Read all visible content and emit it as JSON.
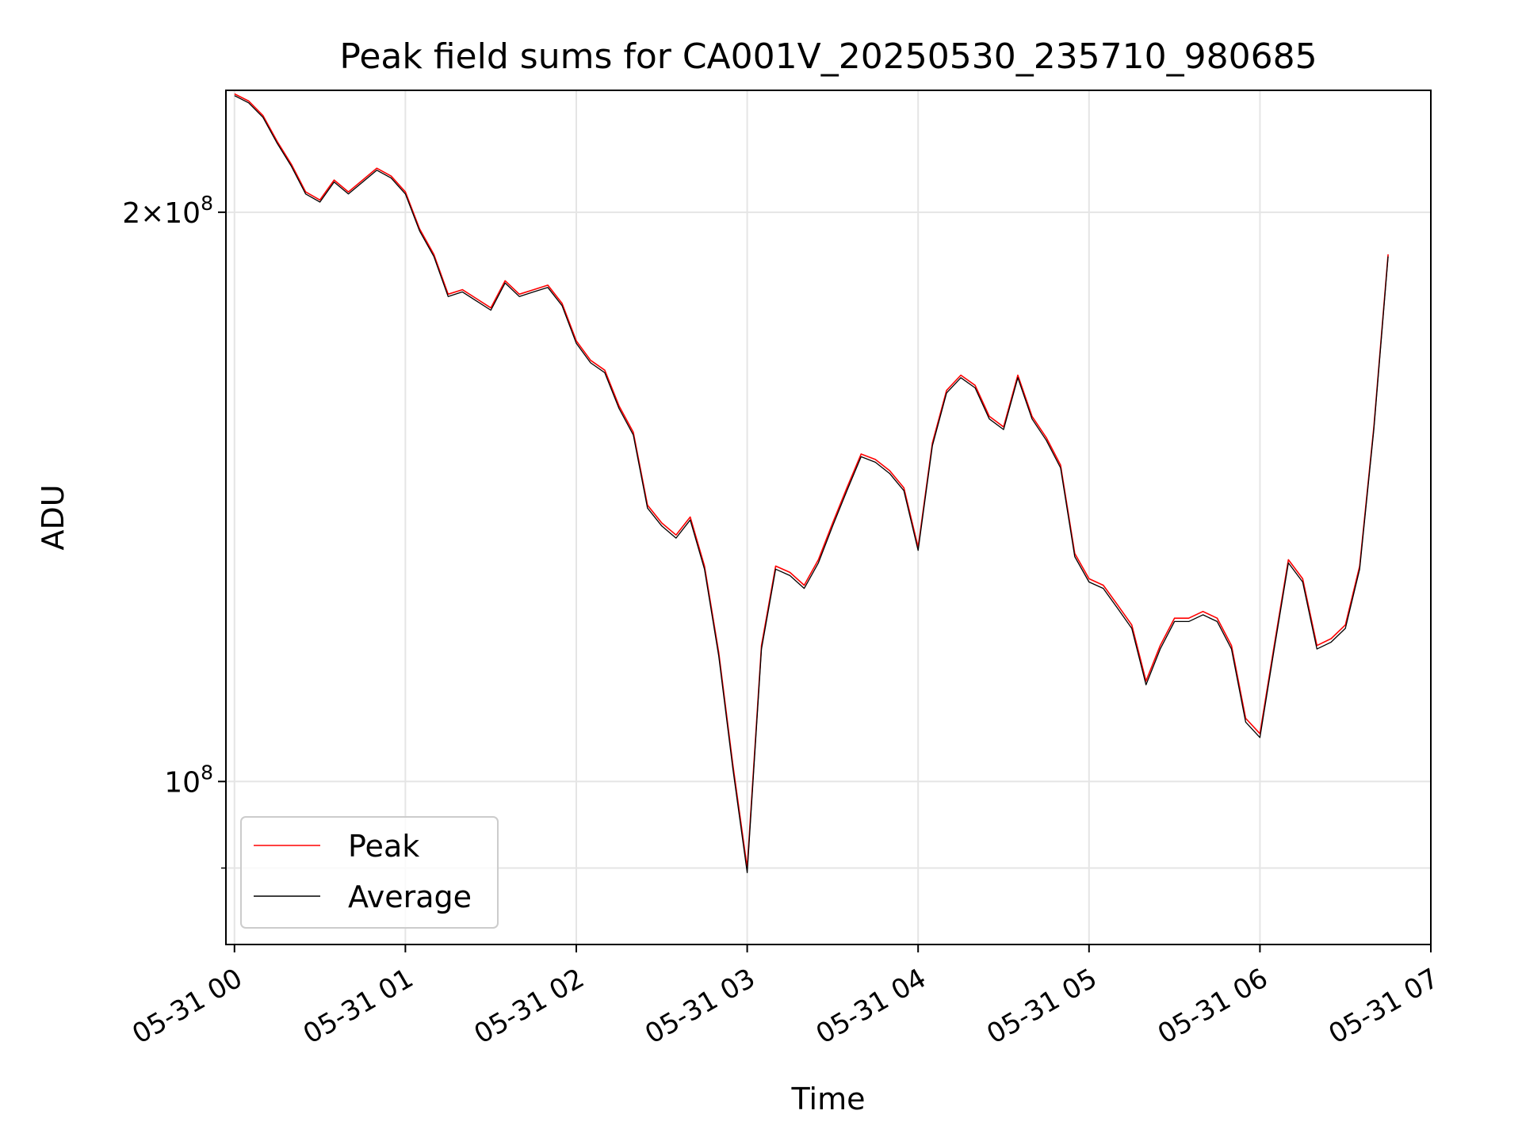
{
  "chart_data": {
    "type": "line",
    "title": "Peak field sums for CA001V_20250530_235710_980685",
    "xlabel": "Time",
    "ylabel": "ADU",
    "x_unit": "datetime",
    "xlim": [
      "2025-05-30 23:57",
      "2025-05-31 07:00"
    ],
    "ylim": [
      82000000,
      232000000
    ],
    "y_scale": "log",
    "grid": true,
    "legend_position": "lower-left",
    "x_ticks": [
      "05-31 00",
      "05-31 01",
      "05-31 02",
      "05-31 03",
      "05-31 04",
      "05-31 05",
      "05-31 06",
      "05-31 07"
    ],
    "y_ticks": [
      {
        "value": 200000000,
        "mantissa": "2",
        "exponent": "8"
      },
      {
        "value": 100000000,
        "mantissa": "",
        "exponent": "8"
      }
    ],
    "y_minor_ticks": [
      90000000
    ],
    "x": [
      "2025-05-31 00:00",
      "2025-05-31 00:05",
      "2025-05-31 00:10",
      "2025-05-31 00:15",
      "2025-05-31 00:20",
      "2025-05-31 00:25",
      "2025-05-31 00:30",
      "2025-05-31 00:35",
      "2025-05-31 00:40",
      "2025-05-31 00:45",
      "2025-05-31 00:50",
      "2025-05-31 00:55",
      "2025-05-31 01:00",
      "2025-05-31 01:05",
      "2025-05-31 01:10",
      "2025-05-31 01:15",
      "2025-05-31 01:20",
      "2025-05-31 01:25",
      "2025-05-31 01:30",
      "2025-05-31 01:35",
      "2025-05-31 01:40",
      "2025-05-31 01:45",
      "2025-05-31 01:50",
      "2025-05-31 01:55",
      "2025-05-31 02:00",
      "2025-05-31 02:05",
      "2025-05-31 02:10",
      "2025-05-31 02:15",
      "2025-05-31 02:20",
      "2025-05-31 02:25",
      "2025-05-31 02:30",
      "2025-05-31 02:35",
      "2025-05-31 02:40",
      "2025-05-31 02:45",
      "2025-05-31 02:50",
      "2025-05-31 02:55",
      "2025-05-31 03:00",
      "2025-05-31 03:05",
      "2025-05-31 03:10",
      "2025-05-31 03:15",
      "2025-05-31 03:20",
      "2025-05-31 03:25",
      "2025-05-31 03:30",
      "2025-05-31 03:35",
      "2025-05-31 03:40",
      "2025-05-31 03:45",
      "2025-05-31 03:50",
      "2025-05-31 03:55",
      "2025-05-31 04:00",
      "2025-05-31 04:05",
      "2025-05-31 04:10",
      "2025-05-31 04:15",
      "2025-05-31 04:20",
      "2025-05-31 04:25",
      "2025-05-31 04:30",
      "2025-05-31 04:35",
      "2025-05-31 04:40",
      "2025-05-31 04:45",
      "2025-05-31 04:50",
      "2025-05-31 04:55",
      "2025-05-31 05:00",
      "2025-05-31 05:05",
      "2025-05-31 05:10",
      "2025-05-31 05:15",
      "2025-05-31 05:20",
      "2025-05-31 05:25",
      "2025-05-31 05:30",
      "2025-05-31 05:35",
      "2025-05-31 05:40",
      "2025-05-31 05:45",
      "2025-05-31 05:50",
      "2025-05-31 05:55",
      "2025-05-31 06:00",
      "2025-05-31 06:05",
      "2025-05-31 06:10",
      "2025-05-31 06:15",
      "2025-05-31 06:20",
      "2025-05-31 06:25",
      "2025-05-31 06:30",
      "2025-05-31 06:35",
      "2025-05-31 06:40",
      "2025-05-31 06:45"
    ],
    "series": [
      {
        "name": "Peak",
        "color": "#ff0000",
        "values": [
          231000000,
          229000000,
          225000000,
          218000000,
          212000000,
          205000000,
          203000000,
          208000000,
          205000000,
          208000000,
          211000000,
          209000000,
          205000000,
          196000000,
          190000000,
          181000000,
          182000000,
          180000000,
          178000000,
          184000000,
          181000000,
          182000000,
          183000000,
          179000000,
          171000000,
          167000000,
          165000000,
          158000000,
          153000000,
          140000000,
          137000000,
          135000000,
          138000000,
          130000000,
          117000000,
          102000000,
          90000000,
          118000000,
          130000000,
          129000000,
          127000000,
          131000000,
          137000000,
          143000000,
          149000000,
          148000000,
          146000000,
          143000000,
          133000000,
          151000000,
          161000000,
          164000000,
          162000000,
          156000000,
          154000000,
          164000000,
          156000000,
          152000000,
          147000000,
          132000000,
          128000000,
          127000000,
          124000000,
          121000000,
          113000000,
          118000000,
          122000000,
          122000000,
          123000000,
          122000000,
          118000000,
          108000000,
          106000000,
          118000000,
          131000000,
          128000000,
          118000000,
          119000000,
          121000000,
          130000000,
          154000000,
          190000000
        ]
      },
      {
        "name": "Average",
        "color": "#000000",
        "values": [
          230500000,
          228500000,
          224500000,
          217500000,
          211500000,
          204500000,
          202500000,
          207500000,
          204500000,
          207500000,
          210500000,
          208500000,
          204500000,
          195500000,
          189500000,
          180500000,
          181500000,
          179500000,
          177500000,
          183500000,
          180500000,
          181500000,
          182500000,
          178500000,
          170500000,
          166500000,
          164500000,
          157500000,
          152500000,
          139500000,
          136500000,
          134500000,
          137500000,
          129500000,
          116500000,
          101500000,
          89500000,
          117500000,
          129500000,
          128500000,
          126500000,
          130500000,
          136500000,
          142500000,
          148500000,
          147500000,
          145500000,
          142500000,
          132500000,
          150500000,
          160500000,
          163500000,
          161500000,
          155500000,
          153500000,
          163500000,
          155500000,
          151500000,
          146500000,
          131500000,
          127500000,
          126500000,
          123500000,
          120500000,
          112500000,
          117500000,
          121500000,
          121500000,
          122500000,
          121500000,
          117500000,
          107500000,
          105500000,
          117500000,
          130500000,
          127500000,
          117500000,
          118500000,
          120500000,
          129500000,
          153500000,
          189500000
        ]
      }
    ]
  }
}
